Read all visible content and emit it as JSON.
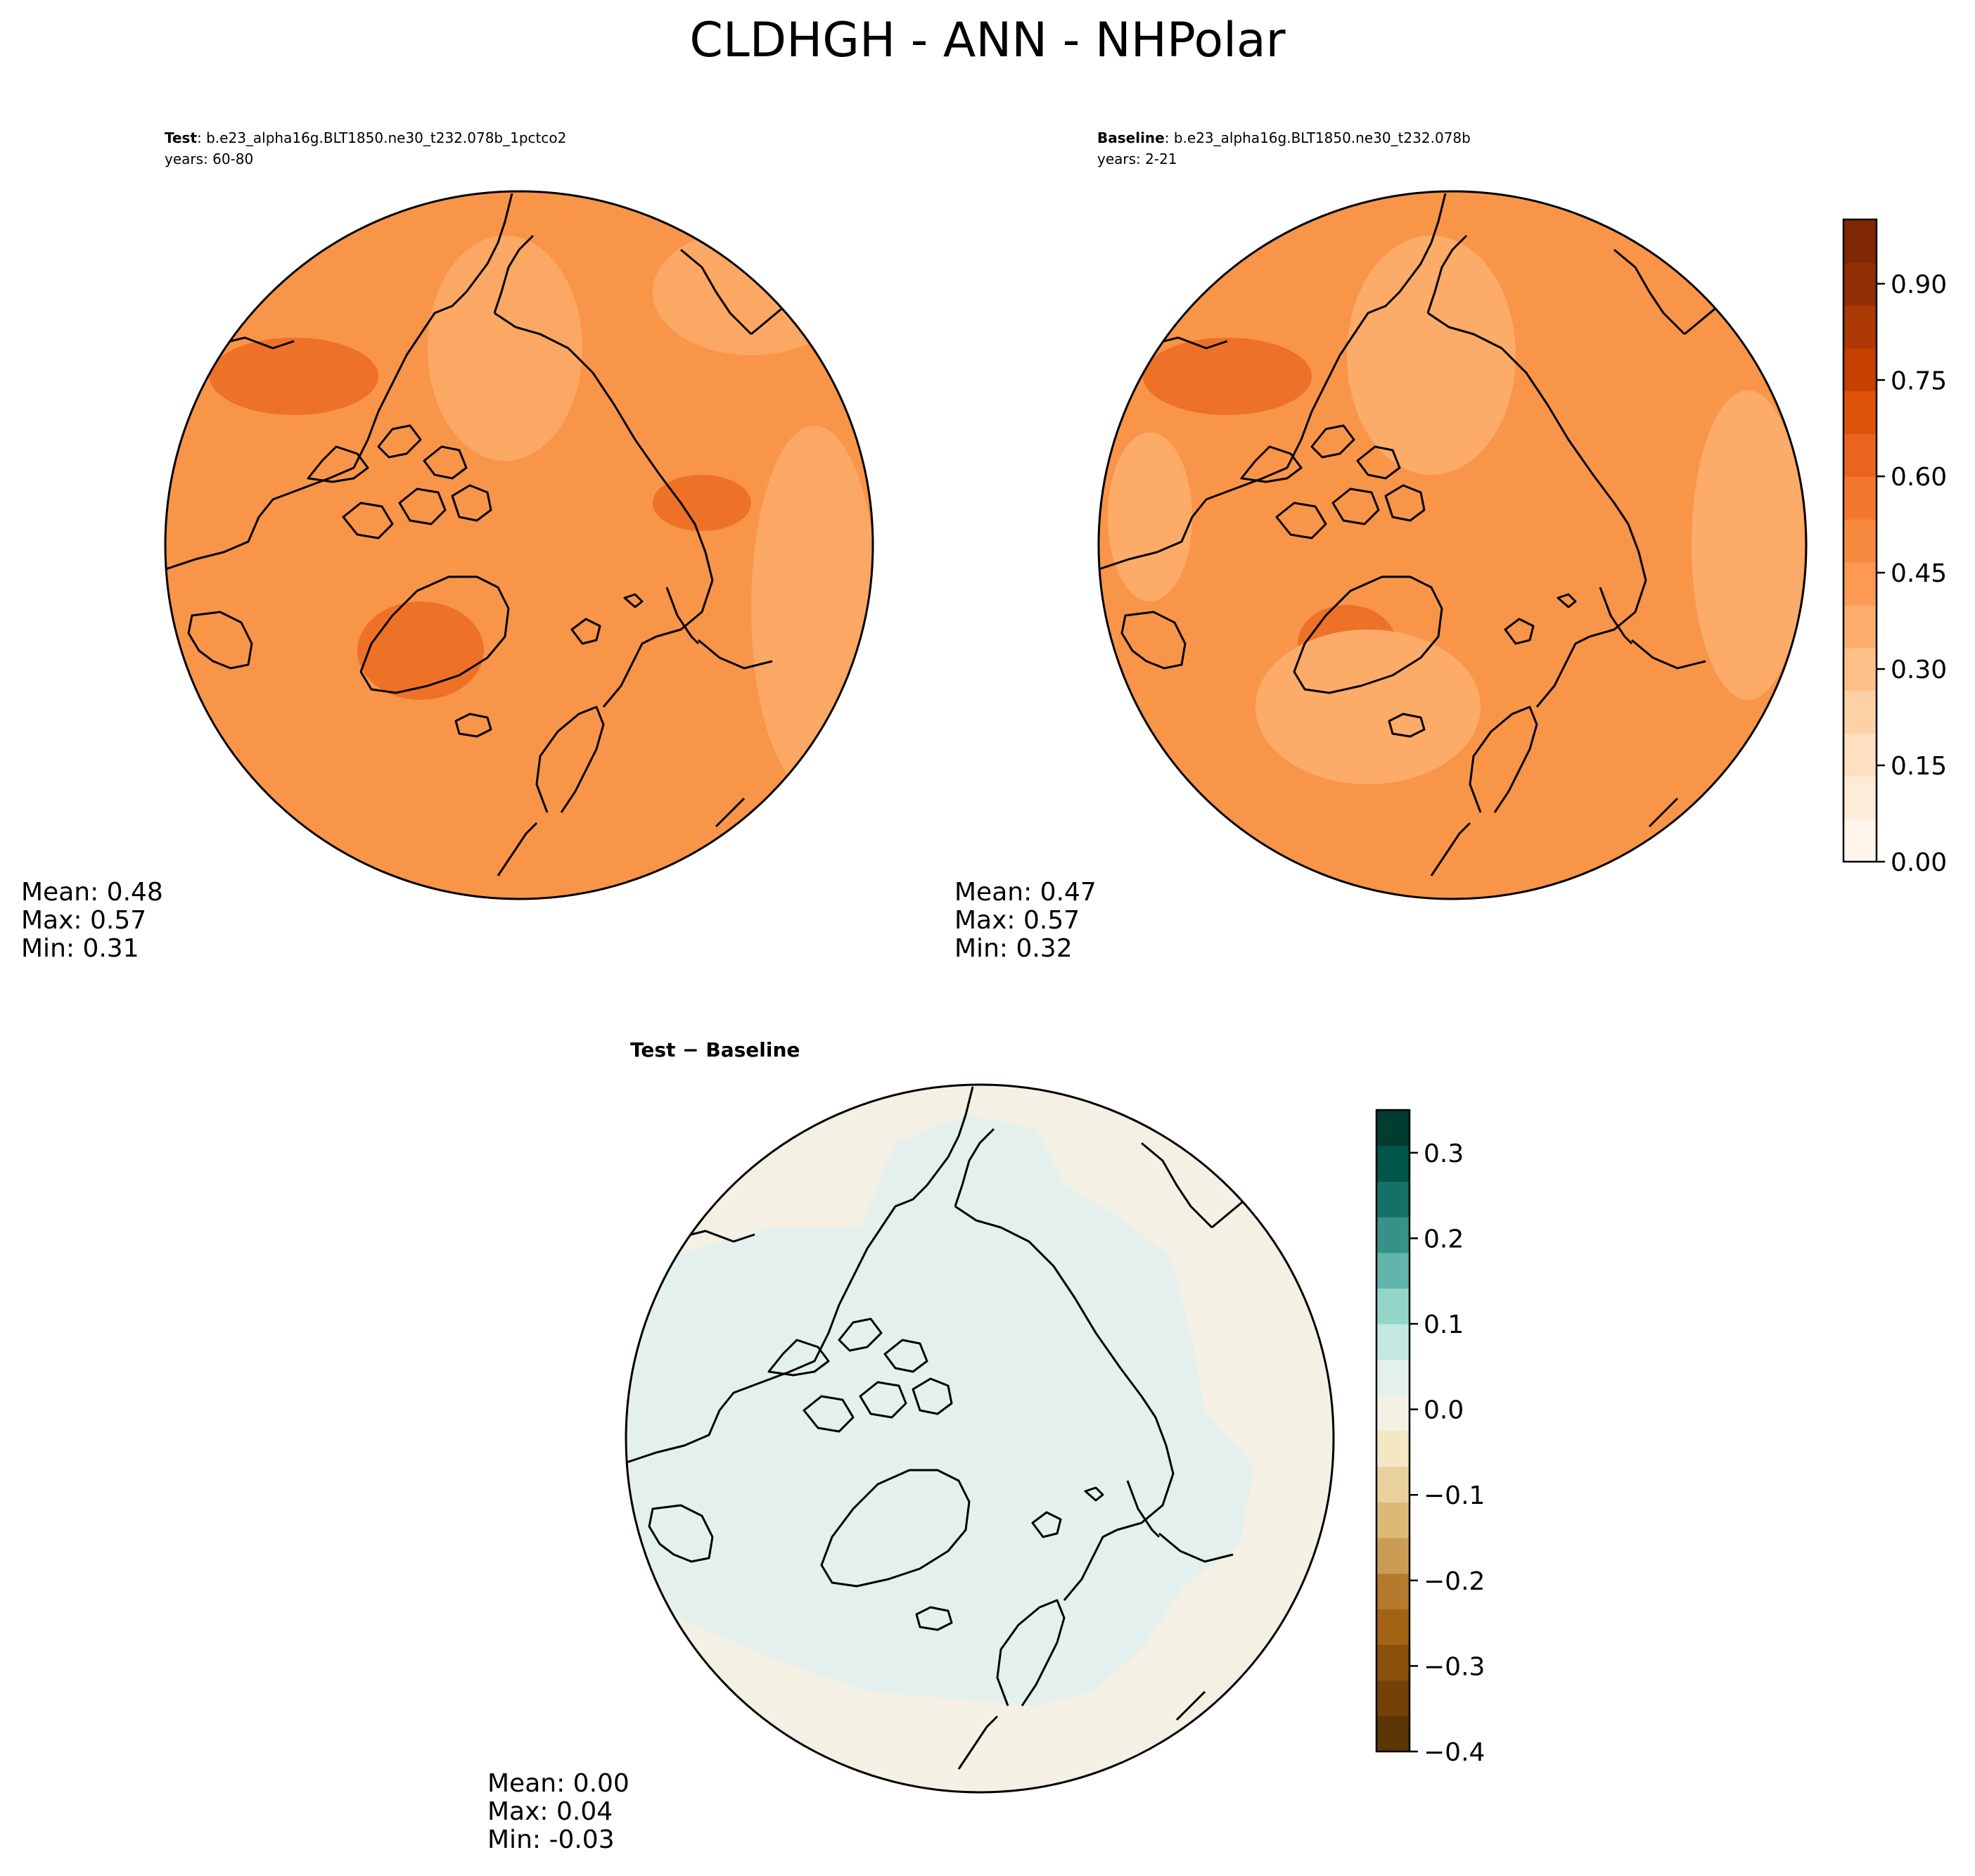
{
  "title": "CLDHGH - ANN - NHPolar",
  "panels": {
    "test": {
      "case_label": "Test",
      "case_name": ": b.e23_alpha16g.BLT1850.ne30_t232.078b_1pctco2",
      "years": "years: 60-80",
      "stats": [
        "Mean:  0.48",
        "Max:  0.57",
        "Min:  0.31"
      ]
    },
    "baseline": {
      "case_label": "Baseline",
      "case_name": ": b.e23_alpha16g.BLT1850.ne30_t232.078b",
      "years": "years: 2-21",
      "stats": [
        "Mean:  0.47",
        "Max:  0.57",
        "Min:  0.32"
      ]
    },
    "diff": {
      "case_label": "Test − Baseline",
      "stats": [
        "Mean:  0.00",
        "Max:  0.04",
        "Min: -0.03"
      ]
    }
  },
  "colorbars": {
    "main": {
      "colormap": "Oranges",
      "range": [
        0.0,
        1.0
      ],
      "step": 0.05,
      "tick_values": [
        0.0,
        0.15,
        0.3,
        0.45,
        0.6,
        0.75,
        0.9
      ],
      "tick_labels": [
        "0.00",
        "0.15",
        "0.30",
        "0.45",
        "0.60",
        "0.75",
        "0.90"
      ],
      "colors": [
        "#fff5eb",
        "#feebd8",
        "#fee0c1",
        "#fdd1a5",
        "#fdc088",
        "#fdad6c",
        "#fd9a53",
        "#f88a3f",
        "#f3782d",
        "#e9641e",
        "#de5209",
        "#c64102",
        "#ac3803",
        "#8f2d04",
        "#7f2704"
      ]
    },
    "diff": {
      "colormap": "BrBG",
      "range": [
        -0.4,
        0.35
      ],
      "step": 0.05,
      "tick_values": [
        -0.4,
        -0.3,
        -0.2,
        -0.1,
        0.0,
        0.1,
        0.2,
        0.3
      ],
      "tick_labels": [
        "−0.4",
        "−0.3",
        "−0.2",
        "−0.1",
        "0.0",
        "0.1",
        "0.2",
        "0.3"
      ],
      "colors": [
        "#5c3605",
        "#744208",
        "#8a500c",
        "#a26314",
        "#b67a2e",
        "#cb9d54",
        "#dbba78",
        "#e8d19d",
        "#f3e7c4",
        "#f4f0e3",
        "#e4f0ed",
        "#c3e8e1",
        "#94d5c9",
        "#62b5aa",
        "#369188",
        "#137167",
        "#01564a",
        "#003c30"
      ]
    },
    "map_colors": {
      "test_base": "#f99549",
      "test_dark": "#ee7128",
      "test_light": "#fca865",
      "baseline_base": "#f99549",
      "baseline_dark": "#ee7128",
      "baseline_light": "#fcab69",
      "diff_pos": "#e4f0ed",
      "diff_neg": "#f4f0e3"
    }
  }
}
